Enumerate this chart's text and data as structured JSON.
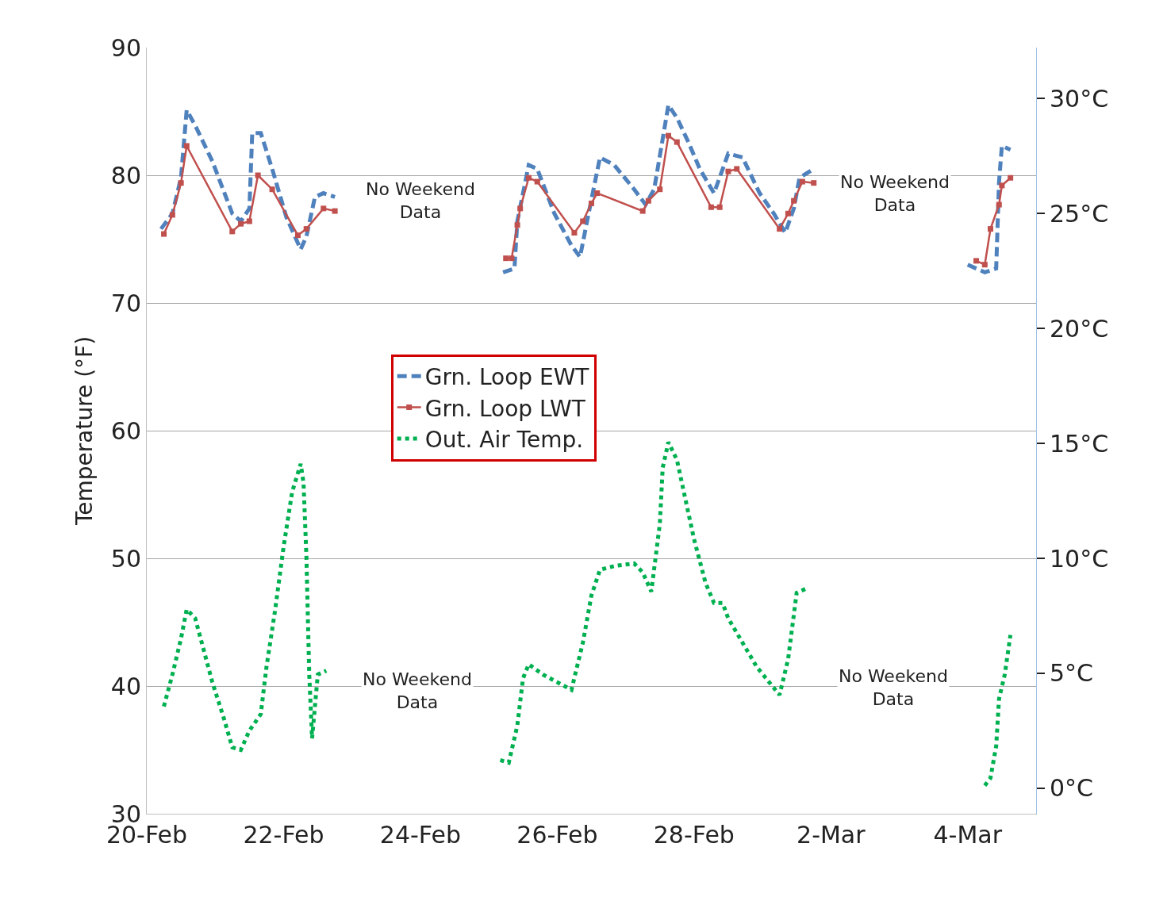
{
  "chart_data": {
    "type": "line",
    "ylabel": "Temperature (°F)",
    "xlim": [
      "--02-20",
      "--03-05"
    ],
    "xticks": [
      {
        "value": "--02-20",
        "label": "20-Feb"
      },
      {
        "value": "--02-22",
        "label": "22-Feb"
      },
      {
        "value": "--02-24",
        "label": "24-Feb"
      },
      {
        "value": "--02-26",
        "label": "26-Feb"
      },
      {
        "value": "--02-28",
        "label": "28-Feb"
      },
      {
        "value": "--03-02",
        "label": "2-Mar"
      },
      {
        "value": "--03-04",
        "label": "4-Mar"
      }
    ],
    "ylim": [
      30,
      90
    ],
    "yticks": [
      30,
      40,
      50,
      60,
      70,
      80,
      90
    ],
    "y2lim": [
      -1.111,
      32.222
    ],
    "y2ticks": [
      {
        "value": 0,
        "label": "0°C"
      },
      {
        "value": 5,
        "label": "5°C"
      },
      {
        "value": 10,
        "label": "10°C"
      },
      {
        "value": 15,
        "label": "15°C"
      },
      {
        "value": 20,
        "label": "20°C"
      },
      {
        "value": 25,
        "label": "25°C"
      },
      {
        "value": 30,
        "label": "30°C"
      }
    ],
    "grid": "y",
    "legend": "center",
    "annotations": [
      "No Weekend\nData",
      "No Weekend\nData",
      "No Weekend\nData",
      "No Weekend\nData"
    ],
    "series": [
      {
        "name": "Grn. Loop EWT",
        "color": "#4f81bd",
        "line_style": "dashed",
        "marker": "none",
        "x": [
          "--02-20T05:00",
          "--02-20T09:00",
          "--02-20T12:00",
          "--02-20T14:00",
          "--02-20T17:00",
          "--02-20T23:00",
          "--02-21T06:00",
          "--02-21T09:00",
          "--02-21T12:00",
          "--02-21T13:00",
          "--02-21T16:00",
          "--02-21T20:00",
          "--02-22T01:00",
          "--02-22T06:00",
          "--02-22T08:00",
          "--02-22T11:00",
          "--02-22T14:00",
          "--02-22T18:00",
          "--02-24T00:00",
          "--02-25T05:00",
          "--02-25T09:00",
          "--02-25T10:00",
          "--02-25T14:00",
          "--02-25T17:00",
          "--02-25T23:00",
          "--02-26T05:00",
          "--02-26T08:00",
          "--02-26T11:00",
          "--02-26T15:00",
          "--02-26T20:00",
          "--02-27T03:00",
          "--02-27T07:00",
          "--02-27T10:00",
          "--02-27T11:00",
          "--02-27T15:00",
          "--02-27T18:00",
          "--02-27T22:00",
          "--02-28T02:00",
          "--02-28T07:00",
          "--02-28T12:00",
          "--02-28T17:00",
          "--02-28T23:00",
          "--03-01T04:00",
          "--03-01T08:00",
          "--03-01T11:00",
          "--03-01T13:00",
          "--03-01T18:00",
          "--03-03T00:00",
          "--03-04T00:00",
          "--03-04T06:00",
          "--03-04T10:00",
          "--03-04T11:00",
          "--03-04T12:00",
          "--03-04T15:00"
        ],
        "values": [
          75.8,
          77.0,
          79.8,
          85.1,
          83.9,
          81.1,
          77.0,
          76.4,
          77.4,
          83.3,
          83.3,
          80.5,
          76.7,
          74.2,
          75.2,
          78.3,
          78.6,
          78.3,
          null,
          72.4,
          72.7,
          76.4,
          80.8,
          80.5,
          77.0,
          74.5,
          73.6,
          77.0,
          81.4,
          80.8,
          78.9,
          77.7,
          78.9,
          80.2,
          85.5,
          84.5,
          82.6,
          80.5,
          78.6,
          81.7,
          81.4,
          78.6,
          77.0,
          75.5,
          77.4,
          79.8,
          80.5,
          null,
          73.0,
          72.4,
          72.7,
          79.5,
          82.3,
          82.0
        ]
      },
      {
        "name": "Grn. Loop LWT",
        "color": "#c0504d",
        "line_style": "solid",
        "marker": "square",
        "x": [
          "--02-20T06:00",
          "--02-20T09:00",
          "--02-20T12:00",
          "--02-20T14:00",
          "--02-21T06:00",
          "--02-21T09:00",
          "--02-21T12:00",
          "--02-21T15:00",
          "--02-21T20:00",
          "--02-22T05:00",
          "--02-22T08:00",
          "--02-22T14:00",
          "--02-22T18:00",
          "--02-24T00:00",
          "--02-25T06:00",
          "--02-25T08:00",
          "--02-25T10:00",
          "--02-25T11:00",
          "--02-25T14:00",
          "--02-25T17:00",
          "--02-26T06:00",
          "--02-26T09:00",
          "--02-26T12:00",
          "--02-26T14:00",
          "--02-27T06:00",
          "--02-27T08:00",
          "--02-27T12:00",
          "--02-27T15:00",
          "--02-27T18:00",
          "--02-28T06:00",
          "--02-28T09:00",
          "--02-28T12:00",
          "--02-28T15:00",
          "--03-01T06:00",
          "--03-01T09:00",
          "--03-01T11:00",
          "--03-01T14:00",
          "--03-01T18:00",
          "--03-03T00:00",
          "--03-04T03:00",
          "--03-04T06:00",
          "--03-04T08:00",
          "--03-04T11:00",
          "--03-04T12:00",
          "--03-04T15:00"
        ],
        "values": [
          75.4,
          76.9,
          79.4,
          82.3,
          75.6,
          76.2,
          76.4,
          80.0,
          78.9,
          75.3,
          75.8,
          77.4,
          77.2,
          null,
          73.5,
          73.5,
          76.1,
          77.4,
          79.8,
          79.5,
          75.5,
          76.4,
          77.8,
          78.6,
          77.2,
          78.0,
          78.9,
          83.1,
          82.6,
          77.5,
          77.5,
          80.3,
          80.5,
          75.8,
          77.0,
          78.0,
          79.5,
          79.4,
          null,
          73.3,
          73.0,
          75.8,
          77.7,
          79.2,
          79.8
        ]
      },
      {
        "name": "Out. Air Temp.",
        "color": "#00b050",
        "line_style": "dotted",
        "marker": "none",
        "x": [
          "--02-20T06:00",
          "--02-20T09:00",
          "--02-20T12:00",
          "--02-20T14:00",
          "--02-20T17:00",
          "--02-20T20:00",
          "--02-20T23:00",
          "--02-21T03:00",
          "--02-21T06:00",
          "--02-21T09:00",
          "--02-21T12:00",
          "--02-21T16:00",
          "--02-21T18:00",
          "--02-21T21:00",
          "--02-22T00:00",
          "--02-22T03:00",
          "--02-22T06:00",
          "--02-22T07:00",
          "--02-22T08:00",
          "--02-22T09:00",
          "--02-22T10:00",
          "--02-22T11:00",
          "--02-22T12:00",
          "--02-22T15:00",
          "--02-24T00:00",
          "--02-25T04:00",
          "--02-25T07:00",
          "--02-25T10:00",
          "--02-25T12:00",
          "--02-25T14:00",
          "--02-25T19:00",
          "--02-26T00:00",
          "--02-26T05:00",
          "--02-26T09:00",
          "--02-26T12:00",
          "--02-26T15:00",
          "--02-26T20:00",
          "--02-27T03:00",
          "--02-27T06:00",
          "--02-27T09:00",
          "--02-27T12:00",
          "--02-27T13:00",
          "--02-27T15:00",
          "--02-27T18:00",
          "--02-27T21:00",
          "--02-28T00:00",
          "--02-28T04:00",
          "--02-28T07:00",
          "--02-28T10:00",
          "--02-28T12:00",
          "--02-28T17:00",
          "--02-28T22:00",
          "--03-01T02:00",
          "--03-01T06:00",
          "--03-01T09:00",
          "--03-01T12:00",
          "--03-01T15:00",
          "--03-03T00:00",
          "--03-04T06:00",
          "--03-04T08:00",
          "--03-04T10:00",
          "--03-04T11:00",
          "--03-04T13:00",
          "--03-04T15:00"
        ],
        "values": [
          38.4,
          40.9,
          43.7,
          46.0,
          45.3,
          42.8,
          40.3,
          37.5,
          35.2,
          35.0,
          36.5,
          37.8,
          41.5,
          45.9,
          50.9,
          55.2,
          57.4,
          55.9,
          50.2,
          40.9,
          35.9,
          38.4,
          40.9,
          41.2,
          null,
          34.2,
          34.0,
          36.9,
          40.6,
          41.7,
          40.9,
          40.3,
          39.7,
          43.4,
          47.1,
          49.1,
          49.4,
          49.6,
          48.9,
          47.4,
          52.7,
          57.1,
          59.1,
          57.7,
          54.6,
          51.5,
          48.1,
          46.5,
          46.5,
          45.3,
          43.4,
          41.5,
          40.4,
          39.3,
          42.1,
          47.3,
          47.6,
          null,
          32.2,
          32.8,
          35.3,
          39.0,
          40.9,
          44.0
        ]
      }
    ]
  }
}
